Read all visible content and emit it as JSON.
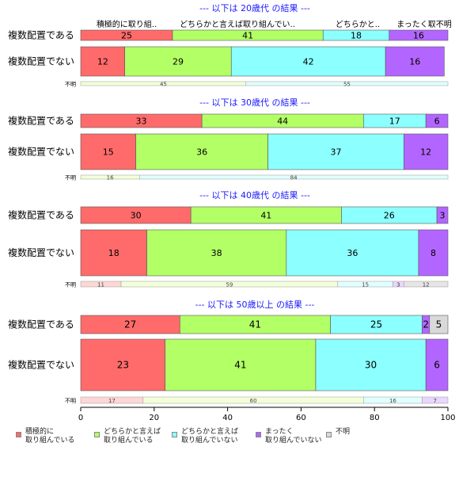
{
  "chart_data": {
    "type": "bar",
    "orientation": "horizontal",
    "stacked": true,
    "xlim": [
      0,
      100
    ],
    "x_ticks": [
      0,
      20,
      40,
      60,
      80,
      100
    ],
    "header_labels": [
      "積極的に取り組..",
      "どちらかと言えば取り組んでい..",
      "どちらかと..",
      "まったく取不明"
    ],
    "groups": [
      {
        "title": "--- 以下は 20歳代 の結果 ---",
        "rows": [
          {
            "label": "複数配置である",
            "values": [
              25,
              41,
              18,
              16,
              0
            ]
          },
          {
            "label": "複数配置でない",
            "values": [
              12,
              29,
              42,
              16,
              0
            ]
          }
        ],
        "unknown": {
          "label": "不明",
          "values": [
            0,
            45,
            55,
            0,
            0
          ]
        }
      },
      {
        "title": "--- 以下は 30歳代 の結果 ---",
        "rows": [
          {
            "label": "複数配置である",
            "values": [
              33,
              44,
              17,
              6,
              0
            ]
          },
          {
            "label": "複数配置でない",
            "values": [
              15,
              36,
              37,
              12,
              0
            ]
          }
        ],
        "unknown": {
          "label": "不明",
          "values": [
            0,
            16,
            84,
            0,
            0
          ]
        }
      },
      {
        "title": "--- 以下は 40歳代 の結果 ---",
        "rows": [
          {
            "label": "複数配置である",
            "values": [
              30,
              41,
              26,
              3,
              0
            ]
          },
          {
            "label": "複数配置でない",
            "values": [
              18,
              38,
              36,
              8,
              0
            ]
          }
        ],
        "unknown": {
          "label": "不明",
          "values": [
            11,
            59,
            15,
            3,
            12
          ]
        }
      },
      {
        "title": "--- 以下は 50歳以上 の結果 ---",
        "rows": [
          {
            "label": "複数配置である",
            "values": [
              27,
              41,
              25,
              2,
              5
            ]
          },
          {
            "label": "複数配置でない",
            "values": [
              23,
              41,
              30,
              6,
              0
            ]
          }
        ],
        "unknown": {
          "label": "不明",
          "values": [
            17,
            60,
            16,
            7,
            0
          ]
        }
      }
    ],
    "series": [
      {
        "name": "積極的に\n取り組んでいる",
        "color": "#ff6b6b",
        "light_color": "#ffd6d6"
      },
      {
        "name": "どちらかと言えば\n取り組んでいる",
        "color": "#b3ff66",
        "light_color": "#f3ffd9"
      },
      {
        "name": "どちらかと言えば\n取り組んでいない",
        "color": "#8cffff",
        "light_color": "#e0ffff"
      },
      {
        "name": "まったく\n取り組んでいない",
        "color": "#b366ff",
        "light_color": "#ead6ff"
      },
      {
        "name": "不明",
        "color": "#d9d9d9",
        "light_color": "#e6e6e6"
      }
    ]
  }
}
